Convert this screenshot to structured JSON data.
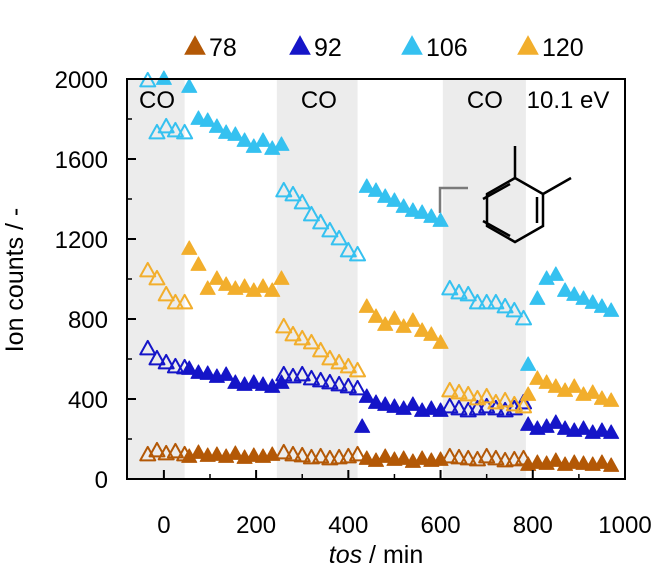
{
  "chart_data": {
    "type": "scatter",
    "xlabel_italic": "tos",
    "xlabel_unit": " / min",
    "ylabel": "Ion counts / -",
    "xlim": [
      -80,
      1000
    ],
    "ylim": [
      0,
      2000
    ],
    "xticks": [
      0,
      200,
      400,
      600,
      800,
      1000
    ],
    "yticks": [
      0,
      400,
      800,
      1200,
      1600,
      2000
    ],
    "annotation": "10.1 eV",
    "co_label": "CO",
    "co_bands": [
      [
        -80,
        45
      ],
      [
        245,
        420
      ],
      [
        605,
        785
      ]
    ],
    "legend_position": "top",
    "series": [
      {
        "name": "78",
        "color": "#b35806",
        "filled": [
          [
            55,
            110
          ],
          [
            75,
            130
          ],
          [
            95,
            115
          ],
          [
            115,
            120
          ],
          [
            135,
            110
          ],
          [
            155,
            125
          ],
          [
            175,
            105
          ],
          [
            195,
            115
          ],
          [
            215,
            110
          ],
          [
            235,
            120
          ],
          [
            440,
            100
          ],
          [
            460,
            90
          ],
          [
            480,
            110
          ],
          [
            500,
            95
          ],
          [
            520,
            100
          ],
          [
            540,
            85
          ],
          [
            560,
            100
          ],
          [
            580,
            90
          ],
          [
            600,
            95
          ],
          [
            790,
            70
          ],
          [
            810,
            80
          ],
          [
            830,
            75
          ],
          [
            850,
            90
          ],
          [
            870,
            70
          ],
          [
            890,
            80
          ],
          [
            910,
            75
          ],
          [
            930,
            70
          ],
          [
            950,
            80
          ],
          [
            970,
            65
          ]
        ],
        "open": [
          [
            -35,
            120
          ],
          [
            -15,
            140
          ],
          [
            5,
            125
          ],
          [
            25,
            135
          ],
          [
            45,
            120
          ],
          [
            260,
            130
          ],
          [
            280,
            120
          ],
          [
            300,
            115
          ],
          [
            320,
            105
          ],
          [
            340,
            110
          ],
          [
            360,
            100
          ],
          [
            380,
            105
          ],
          [
            400,
            110
          ],
          [
            420,
            120
          ],
          [
            620,
            110
          ],
          [
            640,
            105
          ],
          [
            660,
            100
          ],
          [
            680,
            95
          ],
          [
            700,
            110
          ],
          [
            720,
            100
          ],
          [
            740,
            90
          ],
          [
            760,
            95
          ],
          [
            780,
            100
          ]
        ]
      },
      {
        "name": "92",
        "color": "#1515c8",
        "filled": [
          [
            55,
            550
          ],
          [
            75,
            530
          ],
          [
            95,
            525
          ],
          [
            115,
            510
          ],
          [
            135,
            520
          ],
          [
            155,
            480
          ],
          [
            175,
            470
          ],
          [
            195,
            480
          ],
          [
            215,
            470
          ],
          [
            235,
            460
          ],
          [
            255,
            480
          ],
          [
            430,
            260
          ],
          [
            440,
            410
          ],
          [
            460,
            380
          ],
          [
            480,
            370
          ],
          [
            500,
            360
          ],
          [
            520,
            350
          ],
          [
            540,
            370
          ],
          [
            560,
            340
          ],
          [
            580,
            350
          ],
          [
            600,
            340
          ],
          [
            790,
            270
          ],
          [
            810,
            250
          ],
          [
            830,
            260
          ],
          [
            850,
            280
          ],
          [
            870,
            250
          ],
          [
            890,
            240
          ],
          [
            910,
            250
          ],
          [
            930,
            230
          ],
          [
            950,
            240
          ],
          [
            970,
            230
          ]
        ],
        "open": [
          [
            -35,
            650
          ],
          [
            -15,
            600
          ],
          [
            5,
            580
          ],
          [
            25,
            560
          ],
          [
            45,
            555
          ],
          [
            260,
            520
          ],
          [
            280,
            510
          ],
          [
            300,
            520
          ],
          [
            320,
            500
          ],
          [
            340,
            490
          ],
          [
            360,
            480
          ],
          [
            380,
            470
          ],
          [
            400,
            460
          ],
          [
            420,
            450
          ],
          [
            620,
            360
          ],
          [
            640,
            350
          ],
          [
            660,
            340
          ],
          [
            680,
            350
          ],
          [
            700,
            360
          ],
          [
            720,
            350
          ],
          [
            740,
            340
          ],
          [
            760,
            350
          ],
          [
            780,
            380
          ]
        ]
      },
      {
        "name": "106",
        "color": "#35c1f0",
        "filled": [
          [
            0,
            2000
          ],
          [
            55,
            1960
          ],
          [
            75,
            1800
          ],
          [
            95,
            1790
          ],
          [
            115,
            1760
          ],
          [
            135,
            1730
          ],
          [
            155,
            1720
          ],
          [
            175,
            1690
          ],
          [
            195,
            1660
          ],
          [
            215,
            1690
          ],
          [
            235,
            1650
          ],
          [
            255,
            1670
          ],
          [
            440,
            1460
          ],
          [
            460,
            1440
          ],
          [
            480,
            1410
          ],
          [
            500,
            1390
          ],
          [
            520,
            1360
          ],
          [
            540,
            1340
          ],
          [
            560,
            1330
          ],
          [
            580,
            1310
          ],
          [
            600,
            1290
          ],
          [
            790,
            570
          ],
          [
            810,
            900
          ],
          [
            830,
            1000
          ],
          [
            850,
            1020
          ],
          [
            870,
            940
          ],
          [
            890,
            920
          ],
          [
            910,
            900
          ],
          [
            930,
            880
          ],
          [
            950,
            860
          ],
          [
            970,
            840
          ]
        ],
        "open": [
          [
            -35,
            1990
          ],
          [
            -15,
            1730
          ],
          [
            5,
            1760
          ],
          [
            25,
            1740
          ],
          [
            45,
            1730
          ],
          [
            260,
            1440
          ],
          [
            280,
            1420
          ],
          [
            300,
            1380
          ],
          [
            320,
            1320
          ],
          [
            340,
            1280
          ],
          [
            360,
            1240
          ],
          [
            380,
            1200
          ],
          [
            400,
            1140
          ],
          [
            420,
            1120
          ],
          [
            620,
            950
          ],
          [
            640,
            930
          ],
          [
            660,
            920
          ],
          [
            680,
            880
          ],
          [
            700,
            880
          ],
          [
            720,
            880
          ],
          [
            740,
            860
          ],
          [
            760,
            840
          ],
          [
            780,
            800
          ]
        ]
      },
      {
        "name": "120",
        "color": "#f2ae2c",
        "filled": [
          [
            55,
            1150
          ],
          [
            75,
            1070
          ],
          [
            95,
            950
          ],
          [
            115,
            1000
          ],
          [
            135,
            970
          ],
          [
            155,
            950
          ],
          [
            175,
            960
          ],
          [
            195,
            940
          ],
          [
            215,
            960
          ],
          [
            235,
            940
          ],
          [
            255,
            1000
          ],
          [
            440,
            860
          ],
          [
            460,
            810
          ],
          [
            480,
            770
          ],
          [
            500,
            800
          ],
          [
            520,
            760
          ],
          [
            540,
            790
          ],
          [
            560,
            740
          ],
          [
            580,
            720
          ],
          [
            600,
            680
          ],
          [
            790,
            420
          ],
          [
            810,
            500
          ],
          [
            830,
            480
          ],
          [
            850,
            460
          ],
          [
            870,
            440
          ],
          [
            890,
            460
          ],
          [
            910,
            420
          ],
          [
            930,
            430
          ],
          [
            950,
            400
          ],
          [
            970,
            390
          ]
        ],
        "open": [
          [
            -35,
            1040
          ],
          [
            -15,
            1000
          ],
          [
            5,
            920
          ],
          [
            25,
            880
          ],
          [
            45,
            880
          ],
          [
            260,
            760
          ],
          [
            280,
            720
          ],
          [
            300,
            700
          ],
          [
            320,
            680
          ],
          [
            340,
            640
          ],
          [
            360,
            600
          ],
          [
            380,
            580
          ],
          [
            400,
            560
          ],
          [
            420,
            540
          ],
          [
            620,
            440
          ],
          [
            640,
            430
          ],
          [
            660,
            420
          ],
          [
            680,
            400
          ],
          [
            700,
            410
          ],
          [
            720,
            380
          ],
          [
            740,
            390
          ],
          [
            760,
            370
          ],
          [
            780,
            360
          ]
        ]
      }
    ]
  }
}
